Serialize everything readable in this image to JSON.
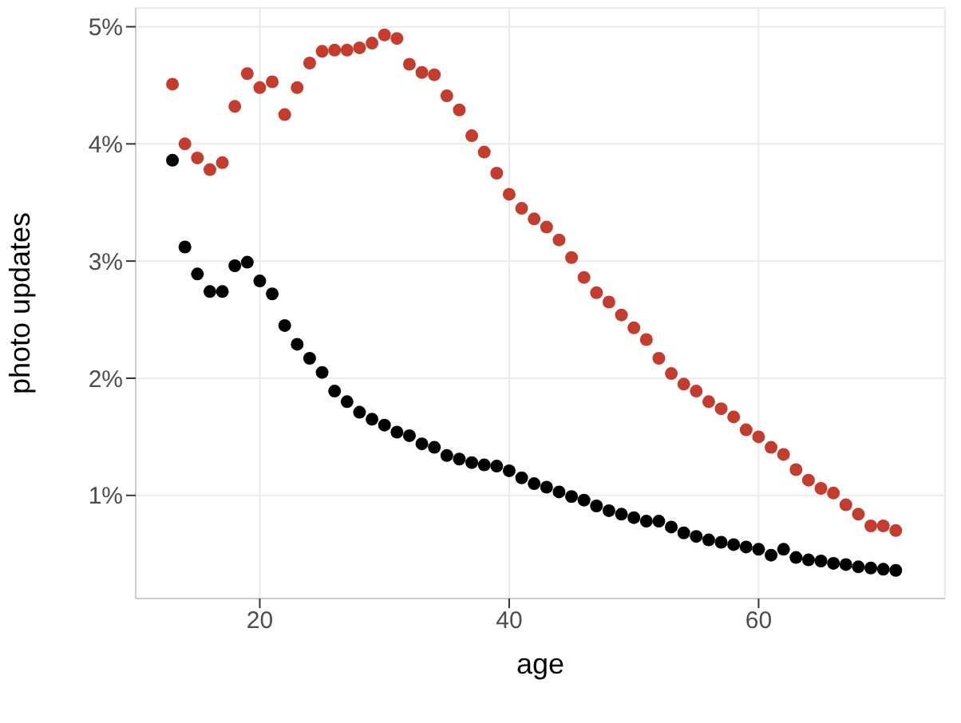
{
  "chart_data": {
    "type": "scatter",
    "xlabel": "age",
    "ylabel": "photo updates",
    "x": [
      13,
      14,
      15,
      16,
      17,
      18,
      19,
      20,
      21,
      22,
      23,
      24,
      25,
      26,
      27,
      28,
      29,
      30,
      31,
      32,
      33,
      34,
      35,
      36,
      37,
      38,
      39,
      40,
      41,
      42,
      43,
      44,
      45,
      46,
      47,
      48,
      49,
      50,
      51,
      52,
      53,
      54,
      55,
      56,
      57,
      58,
      59,
      60,
      61,
      62,
      63,
      64,
      65,
      66,
      67,
      68,
      69,
      70,
      71
    ],
    "series": [
      {
        "color": "#c43c2e",
        "values": [
          4.51,
          4.0,
          3.88,
          3.78,
          3.84,
          4.32,
          4.6,
          4.48,
          4.53,
          4.25,
          4.48,
          4.69,
          4.79,
          4.8,
          4.8,
          4.82,
          4.86,
          4.93,
          4.9,
          4.68,
          4.61,
          4.59,
          4.41,
          4.29,
          4.07,
          3.93,
          3.75,
          3.57,
          3.45,
          3.36,
          3.29,
          3.18,
          3.03,
          2.86,
          2.73,
          2.65,
          2.54,
          2.43,
          2.33,
          2.17,
          2.04,
          1.95,
          1.89,
          1.8,
          1.74,
          1.67,
          1.56,
          1.5,
          1.41,
          1.35,
          1.22,
          1.13,
          1.06,
          1.02,
          0.92,
          0.84,
          0.74,
          0.74,
          0.7
        ]
      },
      {
        "color": "#000000",
        "values": [
          3.86,
          3.12,
          2.89,
          2.74,
          2.74,
          2.96,
          2.99,
          2.83,
          2.72,
          2.45,
          2.29,
          2.17,
          2.05,
          1.89,
          1.8,
          1.71,
          1.65,
          1.6,
          1.54,
          1.51,
          1.44,
          1.41,
          1.34,
          1.31,
          1.28,
          1.26,
          1.25,
          1.21,
          1.15,
          1.1,
          1.07,
          1.03,
          0.99,
          0.96,
          0.91,
          0.87,
          0.84,
          0.81,
          0.78,
          0.78,
          0.73,
          0.68,
          0.65,
          0.62,
          0.6,
          0.58,
          0.56,
          0.54,
          0.49,
          0.54,
          0.47,
          0.45,
          0.44,
          0.42,
          0.41,
          0.39,
          0.38,
          0.37,
          0.36
        ]
      }
    ],
    "xlim": [
      10.05,
      74.95
    ],
    "xticks": [
      20,
      40,
      60
    ],
    "ylim": [
      0.12,
      5.16
    ],
    "yticks": [
      {
        "value": 1,
        "label": "1%"
      },
      {
        "value": 2,
        "label": "2%"
      },
      {
        "value": 3,
        "label": "3%"
      },
      {
        "value": 4,
        "label": "4%"
      },
      {
        "value": 5,
        "label": "5%"
      }
    ],
    "grid": true,
    "marker": "circle"
  }
}
